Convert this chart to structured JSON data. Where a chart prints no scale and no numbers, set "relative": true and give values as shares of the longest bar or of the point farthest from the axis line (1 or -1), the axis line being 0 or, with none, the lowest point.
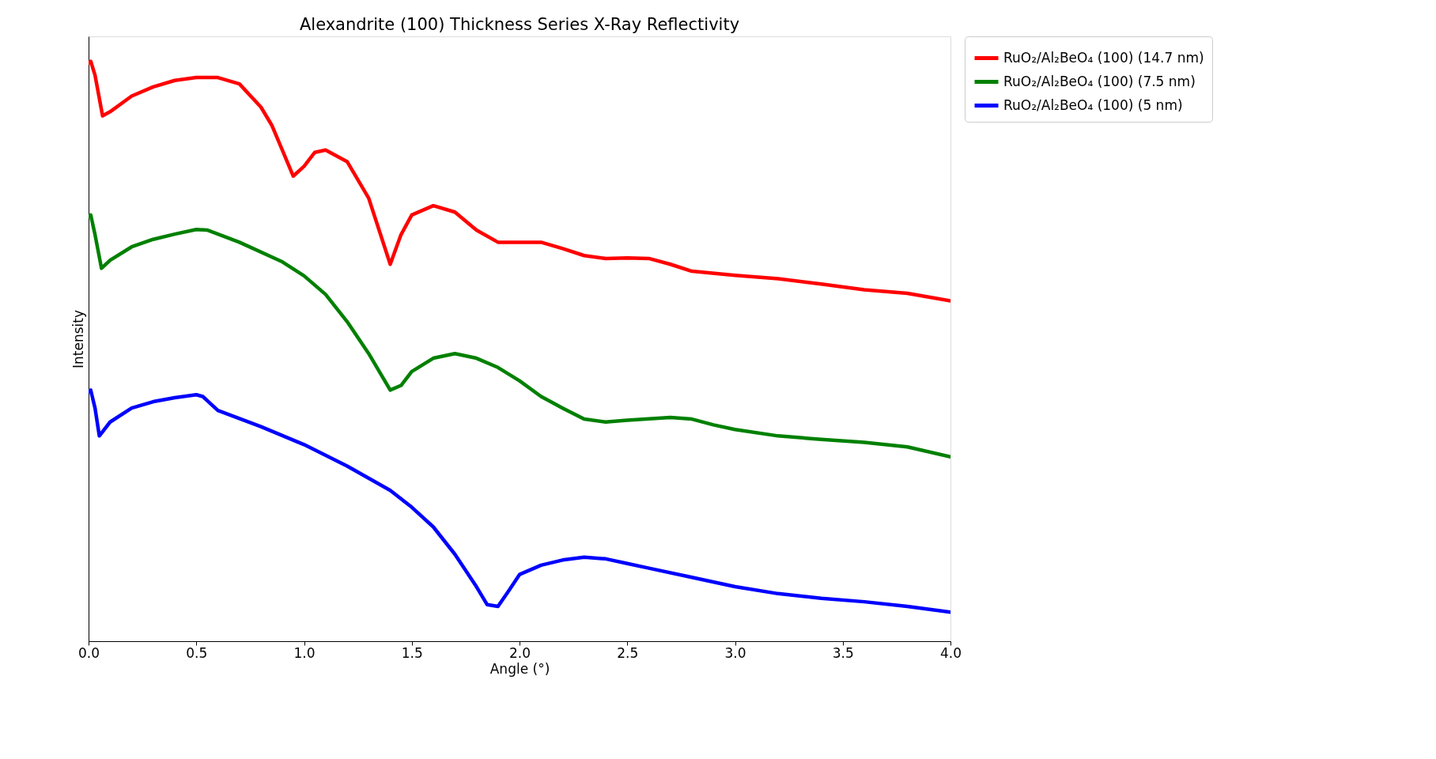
{
  "chart_data": {
    "type": "line",
    "title": "Alexandrite (100) Thickness Series X-Ray Reflectivity",
    "xlabel": "Angle (°)",
    "ylabel": "Intensity",
    "relative": true,
    "grid": false,
    "legend": "right",
    "line_style": "solid",
    "marker": "none",
    "xlim": [
      0,
      4
    ],
    "xticks": [
      {
        "value": 0,
        "label": "0.0"
      },
      {
        "value": 0.5,
        "label": "0.5"
      },
      {
        "value": 1,
        "label": "1.0"
      },
      {
        "value": 1.5,
        "label": "1.5"
      },
      {
        "value": 2,
        "label": "2.0"
      },
      {
        "value": 2.5,
        "label": "2.5"
      },
      {
        "value": 3,
        "label": "3.0"
      },
      {
        "value": 3.5,
        "label": "3.5"
      },
      {
        "value": 4,
        "label": "4.0"
      }
    ],
    "series": [
      {
        "name": "RuO₂/Al₂BeO₄ (100) (14.7 nm)",
        "color": "#ff0000",
        "x": [
          0,
          0.01,
          0.03,
          0.065,
          0.1,
          0.2,
          0.3,
          0.4,
          0.5,
          0.6,
          0.7,
          0.8,
          0.85,
          0.9,
          0.95,
          1.0,
          1.05,
          1.1,
          1.2,
          1.3,
          1.4,
          1.45,
          1.5,
          1.6,
          1.7,
          1.8,
          1.9,
          2.0,
          2.1,
          2.2,
          2.3,
          2.4,
          2.5,
          2.6,
          2.7,
          2.8,
          3.0,
          3.2,
          3.4,
          3.6,
          3.8,
          4.0
        ],
        "values": [
          0.997,
          1.0,
          0.976,
          0.906,
          0.913,
          0.94,
          0.956,
          0.967,
          0.972,
          0.972,
          0.961,
          0.921,
          0.89,
          0.846,
          0.802,
          0.819,
          0.843,
          0.847,
          0.827,
          0.764,
          0.65,
          0.701,
          0.735,
          0.751,
          0.74,
          0.709,
          0.688,
          0.688,
          0.688,
          0.677,
          0.665,
          0.66,
          0.661,
          0.66,
          0.65,
          0.638,
          0.631,
          0.625,
          0.616,
          0.606,
          0.6,
          0.587
        ]
      },
      {
        "name": "RuO₂/Al₂BeO₄ (100) (7.5 nm)",
        "color": "#008000",
        "x": [
          0,
          0.01,
          0.03,
          0.06,
          0.1,
          0.2,
          0.3,
          0.4,
          0.5,
          0.55,
          0.7,
          0.9,
          1.0,
          1.1,
          1.2,
          1.3,
          1.4,
          1.45,
          1.5,
          1.6,
          1.7,
          1.8,
          1.9,
          2.0,
          2.1,
          2.2,
          2.3,
          2.4,
          2.5,
          2.7,
          2.8,
          2.9,
          3.0,
          3.2,
          3.4,
          3.6,
          3.8,
          4.0
        ],
        "values": [
          0.732,
          0.735,
          0.701,
          0.643,
          0.657,
          0.68,
          0.693,
          0.702,
          0.71,
          0.709,
          0.688,
          0.654,
          0.63,
          0.598,
          0.551,
          0.496,
          0.433,
          0.441,
          0.465,
          0.488,
          0.496,
          0.488,
          0.472,
          0.449,
          0.422,
          0.402,
          0.383,
          0.378,
          0.381,
          0.386,
          0.383,
          0.373,
          0.365,
          0.354,
          0.348,
          0.343,
          0.335,
          0.318
        ]
      },
      {
        "name": "RuO₂/Al₂BeO₄ (100) (5 nm)",
        "color": "#0000ff",
        "x": [
          0,
          0.01,
          0.03,
          0.05,
          0.1,
          0.2,
          0.3,
          0.4,
          0.5,
          0.53,
          0.6,
          0.8,
          1.0,
          1.2,
          1.4,
          1.5,
          1.6,
          1.7,
          1.8,
          1.85,
          1.9,
          1.95,
          2.0,
          2.1,
          2.2,
          2.3,
          2.4,
          2.5,
          2.6,
          2.8,
          3.0,
          3.2,
          3.4,
          3.6,
          3.8,
          4.0
        ],
        "values": [
          0.43,
          0.433,
          0.402,
          0.354,
          0.378,
          0.402,
          0.413,
          0.42,
          0.425,
          0.422,
          0.398,
          0.37,
          0.339,
          0.302,
          0.26,
          0.231,
          0.197,
          0.15,
          0.094,
          0.063,
          0.06,
          0.087,
          0.115,
          0.131,
          0.14,
          0.145,
          0.142,
          0.134,
          0.126,
          0.11,
          0.094,
          0.082,
          0.074,
          0.068,
          0.06,
          0.05
        ]
      }
    ]
  }
}
